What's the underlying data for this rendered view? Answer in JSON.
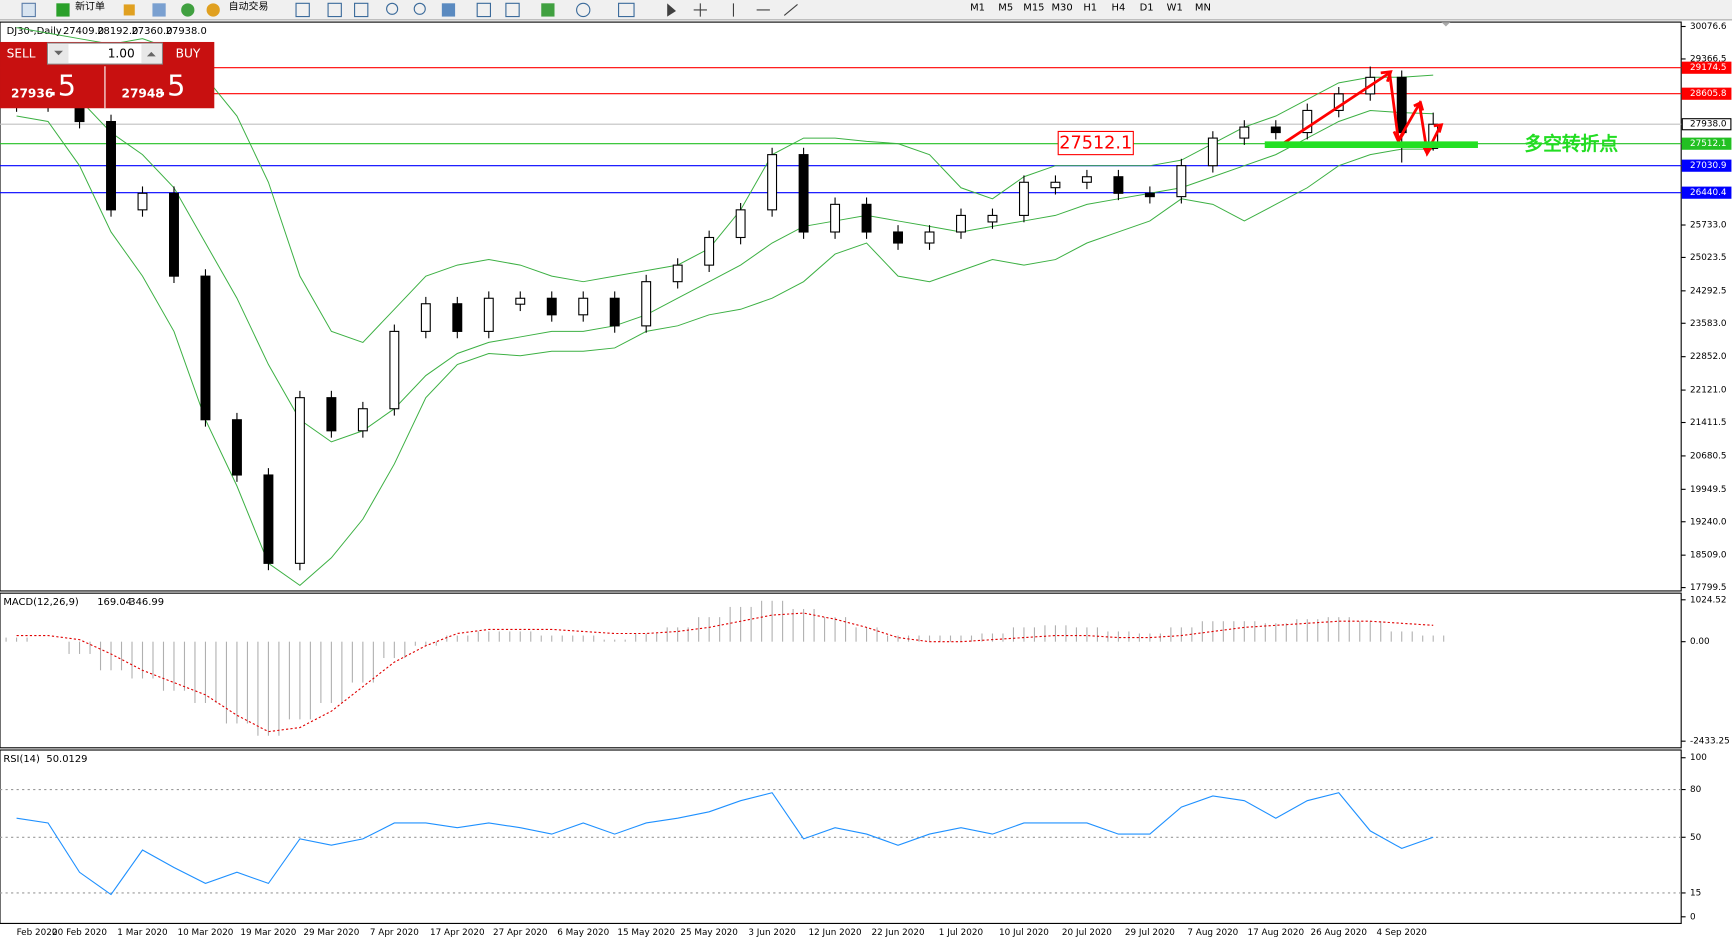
{
  "toolbar": {
    "new_order": "新订单",
    "auto_trading": "自动交易",
    "timeframes": [
      "M1",
      "M5",
      "M15",
      "M30",
      "H1",
      "H4",
      "D1",
      "W1",
      "MN"
    ]
  },
  "trade_panel": {
    "sell": "SELL",
    "buy": "BUY",
    "lot": "1.00",
    "bid_main": "27936",
    "bid_pip": ".5",
    "ask_main": "27948",
    "ask_pip": ".5"
  },
  "chart": {
    "symbol": "DJ30-,Daily",
    "ohlc": [
      "27409.0",
      "28192.0",
      "27360.0",
      "27938.0"
    ],
    "ylim": [
      17750,
      30173
    ],
    "yticks": [
      30076.6,
      29366.5,
      {
        "value": 25733,
        "label": "25733.0"
      },
      25023.5,
      24292.5,
      {
        "value": 23583,
        "label": "23583.0"
      },
      {
        "value": 22852,
        "label": "22852.0"
      },
      {
        "value": 22121,
        "label": "22121.0"
      },
      21411.5,
      20680.5,
      19949.5,
      {
        "value": 19240,
        "label": "19240.0"
      },
      {
        "value": 18509,
        "label": "18509.0"
      },
      17799.5
    ],
    "dates": [
      "Feb 2020",
      "20 Feb 2020",
      "1 Mar 2020",
      "10 Mar 2020",
      "19 Mar 2020",
      "29 Mar 2020",
      "7 Apr 2020",
      "17 Apr 2020",
      "27 Apr 2020",
      "6 May 2020",
      "15 May 2020",
      "25 May 2020",
      "3 Jun 2020",
      "12 Jun 2020",
      "22 Jun 2020",
      "1 Jul 2020",
      "10 Jul 2020",
      "20 Jul 2020",
      "29 Jul 2020",
      "7 Aug 2020",
      "17 Aug 2020",
      "26 Aug 2020",
      "4 Sep 2020"
    ],
    "candles": {
      "open": [
        28500,
        28450,
        28360,
        27997,
        26065,
        26427,
        24614,
        21472,
        20263,
        18330,
        21955,
        21230,
        21713,
        23405,
        24010,
        23405,
        24000,
        24130,
        23768,
        24130,
        23526,
        24493,
        24855,
        25460,
        26065,
        27273,
        25580,
        26185,
        25580,
        25339,
        25580,
        25800,
        25943,
        26550,
        26668,
        26789,
        26427,
        26354,
        27031,
        27635,
        27876,
        27756,
        28240,
        28602,
        28964,
        27409
      ],
      "high": [
        28650,
        28600,
        28510,
        28147,
        26577,
        26577,
        24764,
        21622,
        20413,
        22105,
        22105,
        21863,
        23555,
        24160,
        24160,
        24280,
        24280,
        24280,
        24280,
        24280,
        24643,
        25005,
        25610,
        26215,
        27423,
        27423,
        26335,
        26335,
        25730,
        25730,
        26093,
        26093,
        26818,
        26818,
        26939,
        26939,
        26577,
        27181,
        27785,
        28026,
        28026,
        28390,
        28752,
        29200,
        29114,
        28192
      ],
      "low": [
        28210,
        28210,
        27847,
        25915,
        25915,
        24464,
        21322,
        20113,
        18180,
        18180,
        21080,
        21080,
        21563,
        23255,
        23255,
        23255,
        23850,
        23618,
        23618,
        23376,
        23376,
        24343,
        24705,
        25310,
        25915,
        25430,
        25430,
        25430,
        25189,
        25189,
        25430,
        25650,
        25793,
        26400,
        26518,
        26277,
        26204,
        26204,
        26881,
        27485,
        27606,
        27606,
        28090,
        28452,
        27100,
        27360
      ],
      "close": [
        28360,
        28360,
        27997,
        26065,
        26427,
        24614,
        21472,
        20263,
        18330,
        21955,
        21230,
        21713,
        23405,
        24010,
        23405,
        24130,
        24130,
        23768,
        24130,
        23526,
        24493,
        24855,
        25460,
        26065,
        27273,
        25580,
        26185,
        25580,
        25339,
        25580,
        25943,
        25943,
        26668,
        26668,
        26789,
        26427,
        26354,
        27031,
        27635,
        27876,
        27756,
        28240,
        28602,
        28964,
        27756,
        27938
      ]
    },
    "bollinger": {
      "color": "#3cb043",
      "upper": [
        30052,
        29931,
        29810,
        29690,
        29810,
        29569,
        28965,
        28118,
        26668,
        24614,
        23405,
        23164,
        23889,
        24614,
        24856,
        24977,
        24856,
        24614,
        24493,
        24614,
        24735,
        24856,
        25218,
        26064,
        27273,
        27635,
        27635,
        27563,
        27514,
        27273,
        26548,
        26306,
        26789,
        27031,
        27031,
        27031,
        27031,
        27152,
        27514,
        27877,
        28118,
        28481,
        28844,
        28965,
        28965,
        29013
      ],
      "middle": [
        29085,
        28965,
        28481,
        27756,
        27273,
        26548,
        25339,
        24131,
        22680,
        21472,
        20988,
        21231,
        21714,
        22439,
        22922,
        23164,
        23284,
        23405,
        23405,
        23527,
        23768,
        24131,
        24493,
        24856,
        25339,
        25702,
        25822,
        25943,
        25822,
        25702,
        25581,
        25702,
        25822,
        25943,
        26185,
        26306,
        26427,
        26548,
        26789,
        27031,
        27273,
        27635,
        27998,
        28239,
        28191,
        28167
      ],
      "lower": [
        28118,
        27998,
        27031,
        25581,
        24614,
        23405,
        21472,
        20022,
        18330,
        17847,
        18451,
        19297,
        20505,
        21955,
        22680,
        22922,
        22873,
        22970,
        22970,
        23043,
        23405,
        23527,
        23768,
        23889,
        24131,
        24493,
        25097,
        25339,
        24614,
        24493,
        24735,
        24977,
        24856,
        24977,
        25339,
        25581,
        25822,
        26306,
        26185,
        25822,
        26185,
        26548,
        27031,
        27273,
        27393,
        27393
      ]
    },
    "levels": [
      {
        "value": 29174.5,
        "label": "29174.5",
        "color": "#ff0000"
      },
      {
        "value": 28605.8,
        "label": "28605.8",
        "color": "#ff0000"
      },
      {
        "value": 27938,
        "label": "27938.0",
        "color": "#c0c0c0"
      },
      {
        "value": 27512.1,
        "label": "27512.1",
        "color": "#22c022"
      },
      {
        "value": 27030.9,
        "label": "27030.9",
        "color": "#0000ff"
      },
      {
        "value": 26440.4,
        "label": "26440.4",
        "color": "#0000ff"
      }
    ],
    "note": "多空转折点"
  },
  "macd": {
    "name": "MACD(12,26,9)",
    "readings": [
      "169.04",
      "346.99"
    ],
    "ylim": [
      -2433.25,
      1024.52
    ],
    "yticks": [
      1024.52,
      {
        "value": 0,
        "label": "0.00"
      },
      -2433.25
    ],
    "histogram": [
      100,
      0,
      -300,
      -700,
      -900,
      -1200,
      -1500,
      -2000,
      -2300,
      -1900,
      -1500,
      -1000,
      -400,
      -100,
      150,
      250,
      250,
      150,
      150,
      50,
      200,
      350,
      600,
      850,
      1000,
      800,
      600,
      350,
      150,
      150,
      150,
      200,
      350,
      400,
      350,
      250,
      200,
      350,
      500,
      500,
      450,
      550,
      600,
      500,
      250,
      150
    ],
    "signal": [
      150,
      150,
      50,
      -300,
      -700,
      -1000,
      -1300,
      -1800,
      -2200,
      -2100,
      -1700,
      -1100,
      -500,
      -100,
      200,
      300,
      300,
      300,
      250,
      200,
      200,
      250,
      350,
      500,
      650,
      700,
      550,
      350,
      100,
      0,
      0,
      50,
      100,
      150,
      150,
      100,
      100,
      150,
      250,
      350,
      400,
      450,
      500,
      500,
      450,
      400
    ]
  },
  "rsi": {
    "name": "RSI(14)",
    "reading": "50.0129",
    "ylim": [
      0,
      100
    ],
    "yticks": [
      100,
      80,
      50,
      15,
      0
    ],
    "levels": [
      80,
      50,
      15
    ],
    "values": [
      62,
      59,
      28,
      14,
      42,
      31,
      21,
      28,
      21,
      49,
      45,
      49,
      59,
      59,
      56,
      59,
      56,
      52,
      59,
      52,
      59,
      62,
      66,
      73,
      78,
      49,
      56,
      52,
      45,
      52,
      56,
      52,
      59,
      59,
      59,
      52,
      52,
      69,
      76,
      73,
      62,
      73,
      78,
      54,
      43,
      50
    ]
  }
}
